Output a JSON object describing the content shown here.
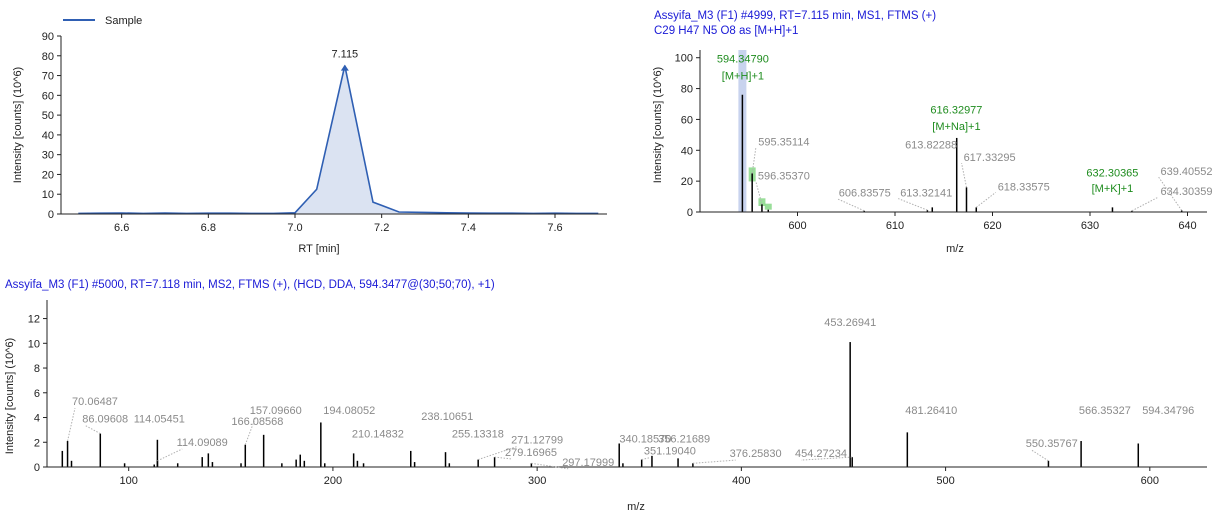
{
  "colors": {
    "axis": "#222222",
    "chromatogram_line": "#2f5fb3",
    "chromatogram_fill": "#dbe3f2",
    "header_text": "#1a1ad6",
    "annotation_text": "#1e8c1e",
    "annotation_highlight": "#7fd67f",
    "precursor_highlight": "#c8d3ee",
    "peak_label_text": "#8a8a8a",
    "leader_line": "#b0b0b0",
    "stick": "#000000"
  },
  "chart_data": [
    {
      "id": "chromatogram",
      "type": "area",
      "legend": {
        "entries": [
          "Sample"
        ],
        "placement": "top-left"
      },
      "xlabel": "RT [min]",
      "ylabel": "Intensity [counts] (10^6)",
      "xlim": [
        6.46,
        7.72
      ],
      "ylim": [
        0,
        90
      ],
      "xticks": [
        6.6,
        6.8,
        7.0,
        7.2,
        7.4,
        7.6
      ],
      "xtick_labels": [
        "6.6",
        "6.8",
        "7.0",
        "7.2",
        "7.4",
        "7.6"
      ],
      "yticks": [
        0,
        10,
        20,
        30,
        40,
        50,
        60,
        70,
        80,
        90
      ],
      "ytick_labels": [
        "0",
        "10",
        "20",
        "30",
        "40",
        "50",
        "60",
        "70",
        "80",
        "90"
      ],
      "series": [
        {
          "name": "Sample",
          "x": [
            6.5,
            6.55,
            6.6,
            6.65,
            6.7,
            6.75,
            6.8,
            6.85,
            6.9,
            6.95,
            7.0,
            7.05,
            7.115,
            7.18,
            7.24,
            7.3,
            7.35,
            7.4,
            7.45,
            7.5,
            7.55,
            7.6,
            7.65,
            7.7
          ],
          "y": [
            0.3,
            0.4,
            0.5,
            0.3,
            0.5,
            0.3,
            0.4,
            0.4,
            0.3,
            0.3,
            0.6,
            12.5,
            75,
            6,
            1,
            0.8,
            0.6,
            0.5,
            0.4,
            0.4,
            0.3,
            0.4,
            0.3,
            0.3
          ]
        }
      ],
      "apex_label": {
        "x": 7.115,
        "y": 75,
        "text": "7.115"
      }
    },
    {
      "id": "ms1",
      "type": "bar",
      "title": "Assyifa_M3 (F1) #4999, RT=7.115 min, MS1, FTMS (+)",
      "subtitle": "C29 H47 N5 O8 as [M+H]+1",
      "xlabel": "m/z",
      "ylabel": "Intensity [counts] (10^6)",
      "xlim": [
        590,
        642
      ],
      "ylim": [
        0,
        105
      ],
      "xticks": [
        600,
        610,
        620,
        630,
        640
      ],
      "xtick_labels": [
        "600",
        "610",
        "620",
        "630",
        "640"
      ],
      "yticks": [
        0,
        20,
        40,
        60,
        80,
        100
      ],
      "ytick_labels": [
        "0",
        "20",
        "40",
        "60",
        "80",
        "100"
      ],
      "peaks": [
        {
          "x": 594.3479,
          "y": 76
        },
        {
          "x": 595.35114,
          "y": 25
        },
        {
          "x": 596.3537,
          "y": 5
        },
        {
          "x": 597.0,
          "y": 1.5
        },
        {
          "x": 606.83575,
          "y": 0.8
        },
        {
          "x": 613.32141,
          "y": 1.2
        },
        {
          "x": 613.82288,
          "y": 3
        },
        {
          "x": 616.32977,
          "y": 48
        },
        {
          "x": 617.33295,
          "y": 16
        },
        {
          "x": 618.33575,
          "y": 3
        },
        {
          "x": 632.30365,
          "y": 3
        },
        {
          "x": 634.30359,
          "y": 0.8
        },
        {
          "x": 639.40552,
          "y": 1
        }
      ],
      "labels": [
        {
          "text": "595.35114",
          "peak_x": 595.35114,
          "peak_y": 25,
          "lx": 598.6,
          "ly": 43,
          "leader": true
        },
        {
          "text": "596.35370",
          "peak_x": 596.3537,
          "peak_y": 5,
          "lx": 598.6,
          "ly": 21,
          "leader": true
        },
        {
          "text": "606.83575",
          "peak_x": 606.83575,
          "peak_y": 0.8,
          "lx": 606.9,
          "ly": 10,
          "leader": true
        },
        {
          "text": "613.82288",
          "peak_x": 613.82288,
          "peak_y": 3,
          "lx": 613.7,
          "ly": 41,
          "leader": false
        },
        {
          "text": "613.32141",
          "peak_x": 613.32141,
          "peak_y": 1.2,
          "lx": 613.2,
          "ly": 10,
          "leader": true
        },
        {
          "text": "617.33295",
          "peak_x": 617.33295,
          "peak_y": 16,
          "lx": 619.7,
          "ly": 33,
          "leader": true
        },
        {
          "text": "618.33575",
          "peak_x": 618.33575,
          "peak_y": 3,
          "lx": 623.2,
          "ly": 14,
          "leader": true
        },
        {
          "text": "639.40552",
          "peak_x": 639.40552,
          "peak_y": 1,
          "lx": 639.9,
          "ly": 24,
          "leader": true
        },
        {
          "text": "634.30359",
          "peak_x": 634.30359,
          "peak_y": 0.8,
          "lx": 639.9,
          "ly": 11,
          "leader": true
        }
      ],
      "annotations": [
        {
          "mz": "594.34790",
          "ion": "[M+H]+1",
          "peak_x": 594.3479,
          "lx": 594.4,
          "ly_mz": 97,
          "ly_ion": 86
        },
        {
          "mz": "616.32977",
          "ion": "[M+Na]+1",
          "peak_x": 616.32977,
          "lx": 616.3,
          "ly_mz": 64,
          "ly_ion": 53
        },
        {
          "mz": "632.30365",
          "ion": "[M+K]+1",
          "peak_x": 632.30365,
          "lx": 632.3,
          "ly_mz": 23,
          "ly_ion": 13
        }
      ],
      "precursor_highlight": {
        "x": 594.3479
      },
      "isotope_highlights": [
        595.35114,
        596.3537,
        597.0
      ]
    },
    {
      "id": "ms2",
      "type": "bar",
      "title": "Assyifa_M3 (F1) #5000, RT=7.118 min, MS2, FTMS (+), (HCD, DDA, 594.3477@(30;50;70), +1)",
      "xlabel": "m/z",
      "ylabel": "Intensity [counts] (10^6)",
      "xlim": [
        60,
        628
      ],
      "ylim": [
        0,
        13.5
      ],
      "xticks": [
        100,
        200,
        300,
        400,
        500,
        600
      ],
      "xtick_labels": [
        "100",
        "200",
        "300",
        "400",
        "500",
        "600"
      ],
      "yticks": [
        0,
        2,
        4,
        6,
        8,
        10,
        12
      ],
      "ytick_labels": [
        "0",
        "2",
        "4",
        "6",
        "8",
        "10",
        "12"
      ],
      "peaks": [
        {
          "x": 67.5,
          "y": 1.3
        },
        {
          "x": 70.06487,
          "y": 2.1
        },
        {
          "x": 72,
          "y": 0.5
        },
        {
          "x": 86.09608,
          "y": 2.7
        },
        {
          "x": 98,
          "y": 0.3
        },
        {
          "x": 112.5,
          "y": 0.2
        },
        {
          "x": 114.05451,
          "y": 2.2
        },
        {
          "x": 114.09089,
          "y": 0.5
        },
        {
          "x": 124,
          "y": 0.3
        },
        {
          "x": 136,
          "y": 0.8
        },
        {
          "x": 139,
          "y": 1.1
        },
        {
          "x": 141,
          "y": 0.4
        },
        {
          "x": 155,
          "y": 0.3
        },
        {
          "x": 157.0966,
          "y": 1.8
        },
        {
          "x": 166.08568,
          "y": 2.6
        },
        {
          "x": 175,
          "y": 0.3
        },
        {
          "x": 182,
          "y": 0.6
        },
        {
          "x": 184,
          "y": 1.0
        },
        {
          "x": 186,
          "y": 0.5
        },
        {
          "x": 194.08052,
          "y": 3.6
        },
        {
          "x": 196,
          "y": 0.3
        },
        {
          "x": 210.14832,
          "y": 1.1
        },
        {
          "x": 212,
          "y": 0.5
        },
        {
          "x": 215,
          "y": 0.3
        },
        {
          "x": 238.10651,
          "y": 1.3
        },
        {
          "x": 240,
          "y": 0.4
        },
        {
          "x": 255.13318,
          "y": 1.2
        },
        {
          "x": 257,
          "y": 0.3
        },
        {
          "x": 271.12799,
          "y": 0.6
        },
        {
          "x": 279.16965,
          "y": 0.8
        },
        {
          "x": 297.17999,
          "y": 0.3
        },
        {
          "x": 340.1857,
          "y": 1.9
        },
        {
          "x": 342,
          "y": 0.3
        },
        {
          "x": 351.1904,
          "y": 0.6
        },
        {
          "x": 356.21689,
          "y": 0.9
        },
        {
          "x": 369,
          "y": 0.7
        },
        {
          "x": 376.2583,
          "y": 0.3
        },
        {
          "x": 453.26941,
          "y": 10.1
        },
        {
          "x": 454.27234,
          "y": 0.8
        },
        {
          "x": 481.2641,
          "y": 2.8
        },
        {
          "x": 550.35767,
          "y": 0.5
        },
        {
          "x": 566.35327,
          "y": 2.1
        },
        {
          "x": 594.34796,
          "y": 1.9
        }
      ],
      "labels": [
        {
          "text": "70.06487",
          "peak_x": 70.06487,
          "peak_y": 2.1,
          "lx": 83.5,
          "ly": 5.0,
          "leader": true
        },
        {
          "text": "86.09608",
          "peak_x": 86.09608,
          "peak_y": 2.7,
          "lx": 88.5,
          "ly": 3.6,
          "leader": true
        },
        {
          "text": "114.05451",
          "peak_x": 114.05451,
          "peak_y": 2.2,
          "lx": 115.0,
          "ly": 3.6,
          "leader": false
        },
        {
          "text": "114.09089",
          "peak_x": 114.09089,
          "peak_y": 0.5,
          "lx": 136.0,
          "ly": 1.7,
          "leader": true
        },
        {
          "text": "157.09660",
          "peak_x": 157.0966,
          "peak_y": 1.8,
          "lx": 172.0,
          "ly": 4.3,
          "leader": true
        },
        {
          "text": "166.08568",
          "peak_x": 166.08568,
          "peak_y": 2.6,
          "lx": 163.0,
          "ly": 3.4,
          "leader": false
        },
        {
          "text": "194.08052",
          "peak_x": 194.08052,
          "peak_y": 3.6,
          "lx": 208.0,
          "ly": 4.3,
          "leader": false
        },
        {
          "text": "210.14832",
          "peak_x": 210.14832,
          "peak_y": 1.1,
          "lx": 222.0,
          "ly": 2.4,
          "leader": false
        },
        {
          "text": "238.10651",
          "peak_x": 238.10651,
          "peak_y": 1.3,
          "lx": 256.0,
          "ly": 3.8,
          "leader": false
        },
        {
          "text": "255.13318",
          "peak_x": 255.13318,
          "peak_y": 1.2,
          "lx": 271.0,
          "ly": 2.4,
          "leader": false
        },
        {
          "text": "271.12799",
          "peak_x": 271.12799,
          "peak_y": 0.6,
          "lx": 300.0,
          "ly": 1.9,
          "leader": true
        },
        {
          "text": "279.16965",
          "peak_x": 279.16965,
          "peak_y": 0.8,
          "lx": 297.0,
          "ly": 0.9,
          "leader": true
        },
        {
          "text": "297.17999",
          "peak_x": 297.17999,
          "peak_y": 0.3,
          "lx": 325.0,
          "ly": 0.1,
          "leader": true
        },
        {
          "text": "340.18570",
          "peak_x": 340.1857,
          "peak_y": 1.9,
          "lx": 353.0,
          "ly": 2.0,
          "leader": false
        },
        {
          "text": "351.19040",
          "peak_x": 351.1904,
          "peak_y": 0.6,
          "lx": 365.0,
          "ly": 1.0,
          "leader": true
        },
        {
          "text": "356.21689",
          "peak_x": 356.21689,
          "peak_y": 0.9,
          "lx": 372.0,
          "ly": 2.0,
          "leader": false
        },
        {
          "text": "376.25830",
          "peak_x": 376.2583,
          "peak_y": 0.3,
          "lx": 407.0,
          "ly": 0.8,
          "leader": true
        },
        {
          "text": "454.27234",
          "peak_x": 454.27234,
          "peak_y": 0.8,
          "lx": 439.0,
          "ly": 0.8,
          "leader": true
        },
        {
          "text": "453.26941",
          "peak_x": 453.26941,
          "peak_y": 10.1,
          "lx": 453.3,
          "ly": 11.4,
          "leader": false
        },
        {
          "text": "481.26410",
          "peak_x": 481.2641,
          "peak_y": 2.8,
          "lx": 493.0,
          "ly": 4.3,
          "leader": false
        },
        {
          "text": "550.35767",
          "peak_x": 550.35767,
          "peak_y": 0.5,
          "lx": 552.0,
          "ly": 1.6,
          "leader": true
        },
        {
          "text": "566.35327",
          "peak_x": 566.35327,
          "peak_y": 2.1,
          "lx": 578.0,
          "ly": 4.3,
          "leader": false
        },
        {
          "text": "594.34796",
          "peak_x": 594.34796,
          "peak_y": 1.9,
          "lx": 609.0,
          "ly": 4.3,
          "leader": false
        }
      ]
    }
  ]
}
